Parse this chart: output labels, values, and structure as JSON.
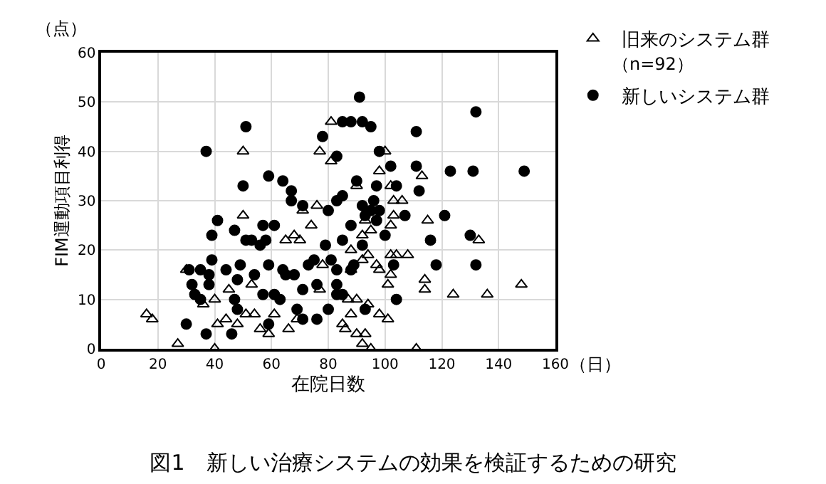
{
  "chart_data": {
    "type": "scatter",
    "title": "図1　新しい治療システムの効果を検証するための研究",
    "xlabel": "在院日数",
    "ylabel": "FIM運動項目利得",
    "annotations": [
      "（点）",
      "（日）",
      "（n=92）"
    ],
    "xlim": [
      0,
      160
    ],
    "xticks": [
      0,
      20,
      40,
      60,
      80,
      100,
      120,
      140,
      160
    ],
    "ylim": [
      0,
      60
    ],
    "yticks": [
      0,
      10,
      20,
      30,
      40,
      50,
      60
    ],
    "grid": true,
    "legend": "top right",
    "series": [
      {
        "name": "旧来のシステム群",
        "color": "#000000",
        "marker": "triangle",
        "x": [
          50,
          77,
          50,
          76,
          71,
          74,
          68,
          65,
          70,
          30,
          53,
          45,
          40,
          36,
          16,
          18,
          41,
          44,
          48,
          51,
          54,
          56,
          59,
          61,
          66,
          69,
          77,
          78,
          27,
          40,
          81,
          81,
          98,
          100,
          113,
          90,
          102,
          103,
          106,
          103,
          115,
          93,
          102,
          95,
          92,
          133,
          88,
          94,
          102,
          104,
          108,
          92,
          97,
          88,
          98,
          102,
          114,
          114,
          101,
          148,
          124,
          136,
          87,
          90,
          94,
          88,
          98,
          101,
          85,
          86,
          90,
          93,
          92,
          95,
          111
        ],
        "values": [
          40,
          40,
          27,
          29,
          28,
          25,
          23,
          22,
          22,
          16,
          13,
          12,
          10,
          9,
          7,
          6,
          5,
          6,
          5,
          7,
          7,
          4,
          3,
          7,
          4,
          6,
          12,
          17,
          1,
          0,
          46,
          38,
          36,
          40,
          35,
          33,
          33,
          30,
          30,
          27,
          26,
          26,
          25,
          24,
          23,
          22,
          20,
          19,
          19,
          19,
          19,
          18,
          17,
          16,
          16,
          15,
          14,
          12,
          13,
          13,
          11,
          11,
          10,
          10,
          9,
          7,
          7,
          6,
          5,
          4,
          3,
          3,
          1,
          0,
          0
        ]
      },
      {
        "name": "新しいシステム群",
        "color": "#000000",
        "marker": "circle",
        "x": [
          51,
          37,
          50,
          59,
          64,
          67,
          67,
          71,
          41,
          39,
          47,
          57,
          61,
          51,
          53,
          56,
          58,
          39,
          49,
          31,
          35,
          38,
          44,
          54,
          59,
          64,
          65,
          68,
          73,
          32,
          38,
          48,
          33,
          35,
          47,
          48,
          57,
          61,
          63,
          71,
          76,
          69,
          71,
          76,
          30,
          37,
          46,
          59,
          78,
          79,
          91,
          132,
          85,
          88,
          92,
          95,
          111,
          83,
          98,
          102,
          111,
          123,
          131,
          149,
          90,
          97,
          104,
          112,
          85,
          83,
          96,
          80,
          92,
          95,
          98,
          93,
          97,
          107,
          121,
          88,
          130,
          100,
          85,
          116,
          92,
          75,
          81,
          89,
          83,
          88,
          103,
          118,
          132,
          83,
          83,
          85,
          104,
          80,
          93
        ],
        "values": [
          45,
          40,
          33,
          35,
          34,
          32,
          30,
          29,
          26,
          23,
          24,
          25,
          25,
          22,
          22,
          21,
          22,
          18,
          17,
          16,
          16,
          15,
          16,
          15,
          17,
          16,
          15,
          15,
          17,
          13,
          13,
          14,
          11,
          10,
          10,
          8,
          11,
          11,
          10,
          12,
          13,
          8,
          6,
          6,
          5,
          3,
          3,
          5,
          43,
          21,
          51,
          48,
          46,
          46,
          46,
          45,
          44,
          39,
          40,
          37,
          37,
          36,
          36,
          36,
          34,
          33,
          33,
          32,
          31,
          30,
          30,
          28,
          29,
          28,
          28,
          27,
          26,
          27,
          27,
          25,
          23,
          23,
          22,
          22,
          21,
          18,
          18,
          17,
          16,
          16,
          17,
          17,
          17,
          13,
          11,
          11,
          10,
          8,
          8
        ]
      }
    ]
  }
}
